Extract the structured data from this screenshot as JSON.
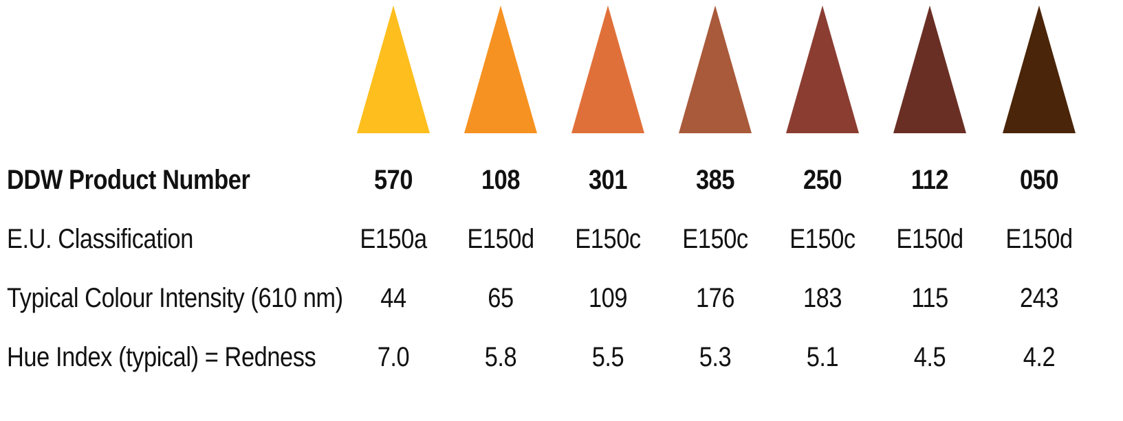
{
  "products": [
    {
      "number": "570",
      "classification": "E150a",
      "intensity": "44",
      "hue": "7.0",
      "color": "#FDBE1E"
    },
    {
      "number": "108",
      "classification": "E150d",
      "intensity": "65",
      "hue": "5.8",
      "color": "#F69221"
    },
    {
      "number": "301",
      "classification": "E150c",
      "intensity": "109",
      "hue": "5.5",
      "color": "#E0703A"
    },
    {
      "number": "385",
      "classification": "E150c",
      "intensity": "176",
      "hue": "5.3",
      "color": "#A95A3A"
    },
    {
      "number": "250",
      "classification": "E150c",
      "intensity": "183",
      "hue": "5.1",
      "color": "#8B3D31"
    },
    {
      "number": "112",
      "classification": "E150d",
      "intensity": "115",
      "hue": "4.5",
      "color": "#6A2F24"
    },
    {
      "number": "050",
      "classification": "E150d",
      "intensity": "243",
      "hue": "4.2",
      "color": "#4A2509"
    }
  ],
  "rows": {
    "product_number": "DDW Product Number",
    "classification": "E.U. Classification",
    "intensity": "Typical Colour Intensity (610 nm)",
    "hue": "Hue Index (typical) = Redness"
  }
}
